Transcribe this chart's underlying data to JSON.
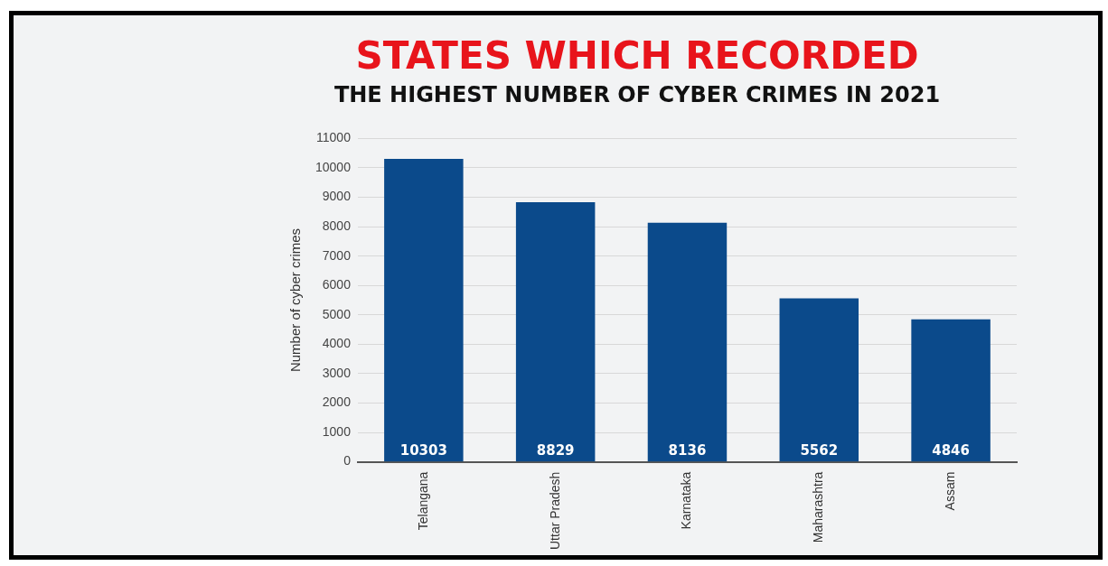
{
  "chart_data": {
    "type": "bar",
    "title": "STATES WHICH RECORDED",
    "subtitle": "THE HIGHEST NUMBER OF CYBER CRIMES IN 2021",
    "ylabel": "Number of cyber crimes",
    "categories": [
      "Telangana",
      "Uttar Pradesh",
      "Karnataka",
      "Maharashtra",
      "Assam"
    ],
    "values": [
      10303,
      8829,
      8136,
      5562,
      4846
    ],
    "color": "#0b4a8b",
    "ylim": [
      0,
      11000
    ],
    "yticks": [
      0,
      1000,
      2000,
      3000,
      4000,
      5000,
      6000,
      7000,
      8000,
      9000,
      10000,
      11000
    ],
    "grid": "y",
    "data_labels": true
  }
}
